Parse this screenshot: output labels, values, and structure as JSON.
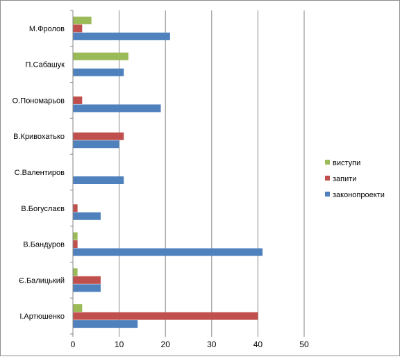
{
  "chart_data": {
    "type": "bar",
    "orientation": "horizontal",
    "categories": [
      "М.Фролов",
      "П.Сабашук",
      "О.Пономарьов",
      "В.Кривохатько",
      "С.Валентиров",
      "В.Богуслаєв",
      "В.Бандуров",
      "Є.Балицький",
      "І.Артюшенко"
    ],
    "series": [
      {
        "name": "виступи",
        "color": "#9bbb59",
        "values": [
          4,
          12,
          0,
          0,
          0,
          0,
          1,
          1,
          2
        ]
      },
      {
        "name": "запити",
        "color": "#c0504d",
        "values": [
          2,
          0,
          2,
          11,
          0,
          1,
          1,
          6,
          40
        ]
      },
      {
        "name": "законопроекти",
        "color": "#4f81bd",
        "values": [
          21,
          11,
          19,
          10,
          11,
          6,
          41,
          6,
          14
        ]
      }
    ],
    "xlim": [
      0,
      50
    ],
    "x_ticks": [
      0,
      10,
      20,
      30,
      40,
      50
    ],
    "x_tick_labels": [
      "0",
      "10",
      "20",
      "30",
      "40",
      "50"
    ],
    "grid": true,
    "legend": "right",
    "title": "",
    "xlabel": "",
    "ylabel": ""
  }
}
